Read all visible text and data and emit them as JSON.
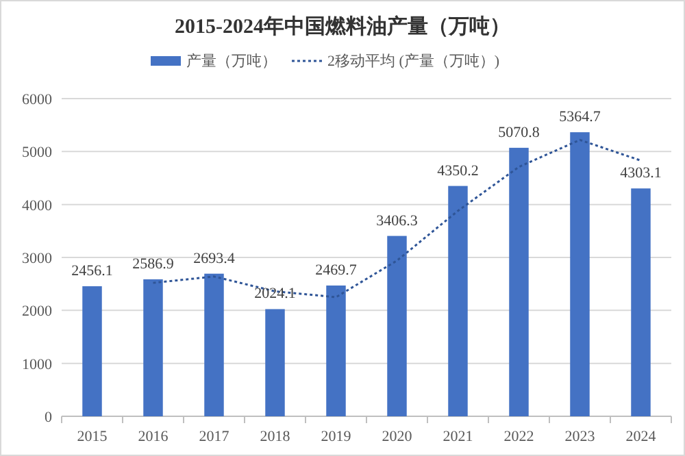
{
  "chart_data": {
    "type": "bar",
    "title": "2015-2024年中国燃料油产量（万吨）",
    "categories": [
      "2015",
      "2016",
      "2017",
      "2018",
      "2019",
      "2020",
      "2021",
      "2022",
      "2023",
      "2024"
    ],
    "series": [
      {
        "name": "产量（万吨）",
        "color": "#4472c4",
        "values": [
          2456.1,
          2586.9,
          2693.4,
          2024.1,
          2469.7,
          3406.3,
          4350.2,
          5070.8,
          5364.7,
          4303.1
        ],
        "value_labels": [
          "2456.1",
          "2586.9",
          "2693.4",
          "2024.1",
          "2469.7",
          "3406.3",
          "4350.2",
          "5070.8",
          "5364.7",
          "4303.1"
        ]
      },
      {
        "name": "2移动平均 (产量（万吨）)",
        "type": "line",
        "color": "#2f5597",
        "line_style": "dotted",
        "values": [
          null,
          2520,
          2640,
          2360,
          2250,
          2940,
          3880,
          4710,
          5220,
          4830
        ]
      }
    ],
    "ylim": [
      0,
      6000
    ],
    "yticks": [
      0,
      1000,
      2000,
      3000,
      4000,
      5000,
      6000
    ],
    "grid": "y",
    "legend": "top"
  }
}
